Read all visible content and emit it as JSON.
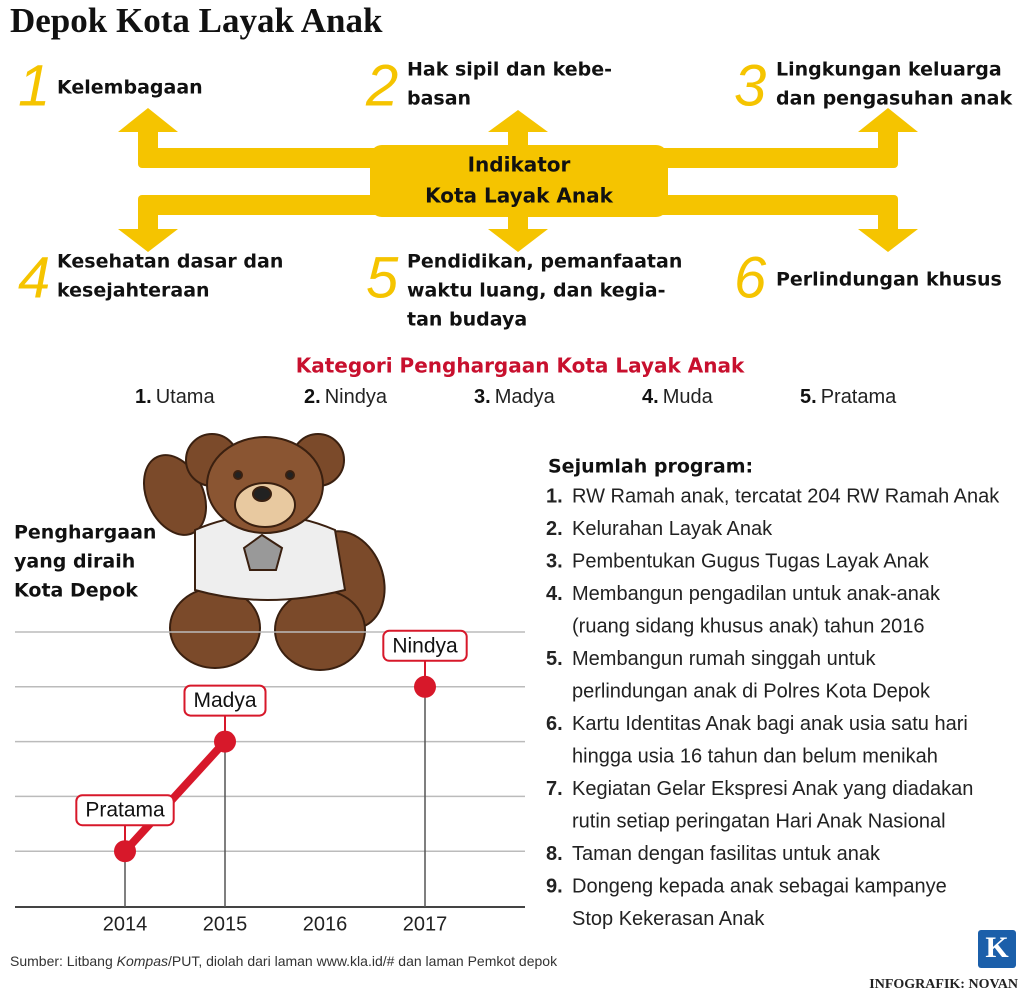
{
  "title": "Depok Kota Layak Anak",
  "indicator_center": [
    "Indikator",
    "Kota Layak Anak"
  ],
  "indicators": [
    {
      "number": "1",
      "lines": [
        "Kelembagaan"
      ]
    },
    {
      "number": "2",
      "lines": [
        "Hak sipil dan kebe-",
        "basan"
      ]
    },
    {
      "number": "3",
      "lines": [
        "Lingkungan keluarga",
        "dan pengasuhan anak"
      ]
    },
    {
      "number": "4",
      "lines": [
        "Kesehatan dasar dan",
        "kesejahteraan"
      ]
    },
    {
      "number": "5",
      "lines": [
        "Pendidikan, pemanfaatan",
        "waktu luang, dan kegia-",
        "tan budaya"
      ]
    },
    {
      "number": "6",
      "lines": [
        "Perlindungan khusus"
      ]
    }
  ],
  "awards": {
    "title": "Kategori Penghargaan Kota Layak Anak",
    "items": [
      {
        "number": "1.",
        "name": "Utama"
      },
      {
        "number": "2.",
        "name": "Nindya"
      },
      {
        "number": "3.",
        "name": "Madya"
      },
      {
        "number": "4.",
        "name": "Muda"
      },
      {
        "number": "5.",
        "name": "Pratama"
      }
    ]
  },
  "chart": {
    "title": [
      "Penghargaan",
      "yang diraih",
      "Kota Depok"
    ],
    "x": [
      "2014",
      "2015",
      "2016",
      "2017"
    ],
    "points": [
      "Pratama",
      "Madya",
      null,
      "Nindya"
    ]
  },
  "programs": {
    "title": "Sejumlah program:",
    "items": [
      {
        "number": "1.",
        "lines": [
          "RW Ramah anak, tercatat 204 RW Ramah Anak"
        ]
      },
      {
        "number": "2.",
        "lines": [
          "Kelurahan Layak Anak"
        ]
      },
      {
        "number": "3.",
        "lines": [
          "Pembentukan Gugus Tugas Layak Anak"
        ]
      },
      {
        "number": "4.",
        "lines": [
          "Membangun pengadilan untuk anak-anak",
          "(ruang sidang khusus anak) tahun 2016"
        ]
      },
      {
        "number": "5.",
        "lines": [
          "Membangun rumah singgah untuk",
          "perlindungan anak di Polres Kota Depok"
        ]
      },
      {
        "number": "6.",
        "lines": [
          "Kartu Identitas Anak bagi anak usia satu hari",
          "hingga usia 16 tahun dan belum menikah"
        ]
      },
      {
        "number": "7.",
        "lines": [
          "Kegiatan Gelar Ekspresi Anak yang diadakan",
          "rutin setiap peringatan Hari Anak Nasional"
        ]
      },
      {
        "number": "8.",
        "lines": [
          "Taman dengan fasilitas untuk anak"
        ]
      },
      {
        "number": "9.",
        "lines": [
          "Dongeng kepada anak sebagai kampanye",
          "Stop Kekerasan Anak"
        ]
      }
    ]
  },
  "source": [
    "Sumber: Litbang ",
    "Kompas",
    "/PUT, diolah dari laman www.kla.id/# dan laman Pemkot depok"
  ],
  "logo": "K",
  "credit": "INFOGRAFIK: NOVAN"
}
